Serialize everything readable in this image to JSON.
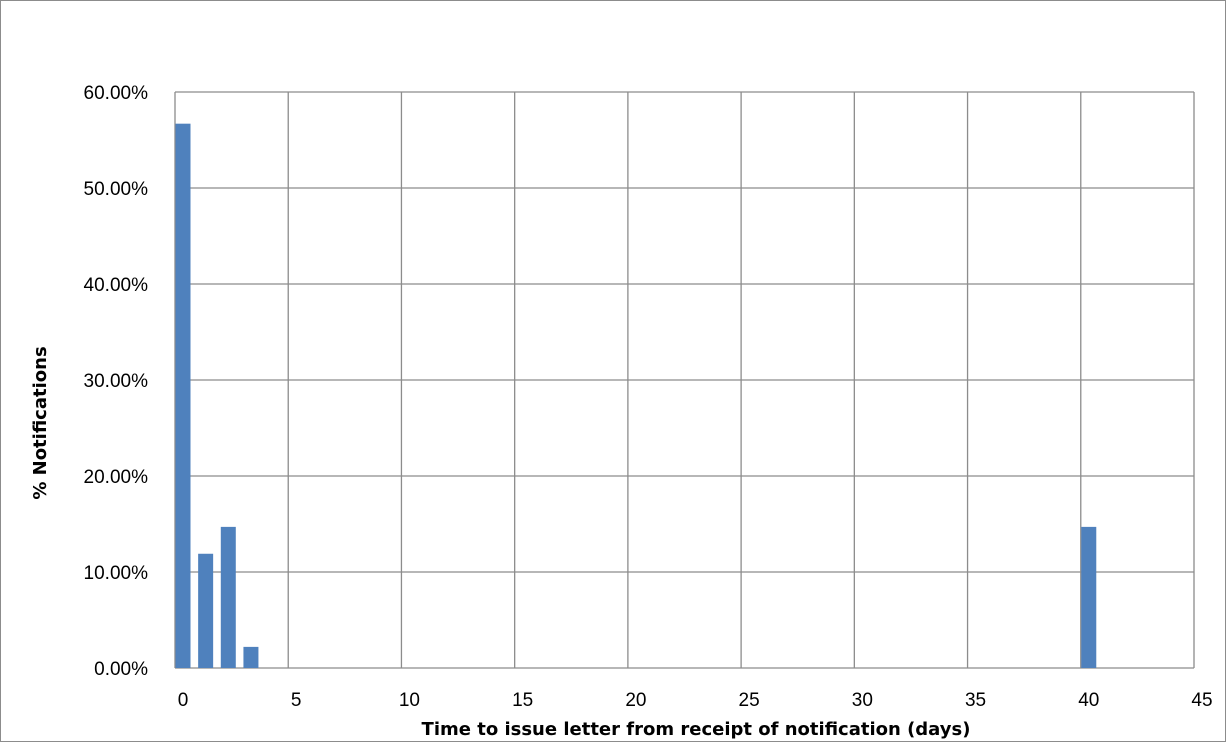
{
  "chart_data": {
    "type": "bar",
    "xlabel": "Time to issue letter from receipt of notification (days)",
    "ylabel": "% Notifications",
    "x_ticks": [
      "0",
      "5",
      "10",
      "15",
      "20",
      "25",
      "30",
      "35",
      "40",
      "45"
    ],
    "y_ticks": [
      "0.00%",
      "10.00%",
      "20.00%",
      "30.00%",
      "40.00%",
      "50.00%",
      "60.00%"
    ],
    "xlim": [
      0,
      45
    ],
    "ylim": [
      0,
      60
    ],
    "grid": true,
    "legend": "none",
    "bar_color": "#4f81bd",
    "x": [
      0,
      1,
      2,
      3,
      40
    ],
    "values": [
      56.7,
      11.9,
      14.7,
      2.2,
      14.7
    ]
  }
}
